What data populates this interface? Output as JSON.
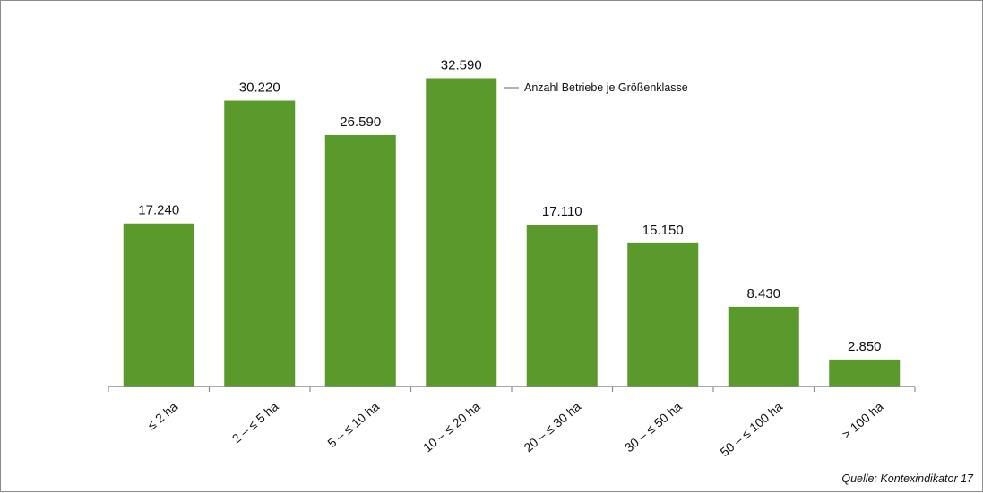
{
  "chart_data": {
    "type": "bar",
    "categories": [
      "≤ 2 ha",
      "2 – ≤ 5 ha",
      "5 – ≤ 10 ha",
      "10 – ≤ 20 ha",
      "20 – ≤ 30 ha",
      "30 – ≤ 50 ha",
      "50 – ≤ 100 ha",
      "> 100 ha"
    ],
    "values": [
      17240,
      30220,
      26590,
      32590,
      17110,
      15150,
      8430,
      2850
    ],
    "value_labels": [
      "17.240",
      "30.220",
      "26.590",
      "32.590",
      "17.110",
      "15.150",
      "8.430",
      "2.850"
    ],
    "series_name": "Anzahl Betriebe je Größenklasse",
    "title": "",
    "xlabel": "",
    "ylabel": "",
    "ylim": [
      0,
      35000
    ],
    "grid": false,
    "legend_position": "top-right of tallest bar",
    "bar_color": "#5a9a2d",
    "axis_color": "#8c8c8c",
    "legend_line_color": "#9a9a9a"
  },
  "source_note": "Quelle: Kontexindikator 17"
}
